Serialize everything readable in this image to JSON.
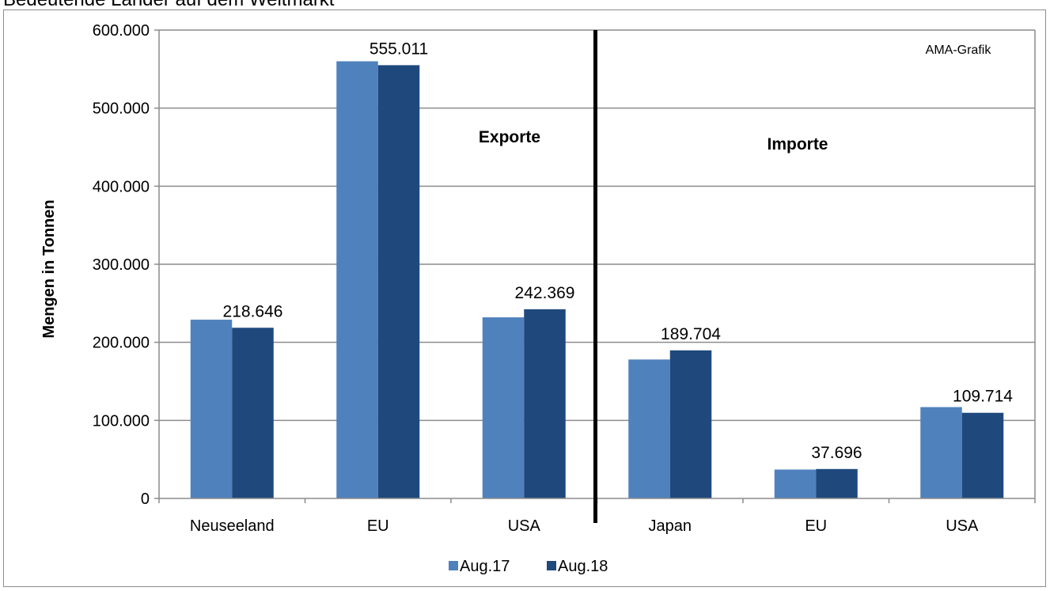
{
  "title": "Bedeutende Länder auf dem Weltmarkt",
  "chart_data": {
    "type": "bar",
    "title": "Bedeutende Länder auf dem Weltmarkt",
    "xlabel": "",
    "ylabel": "Mengen in Tonnen",
    "ylim": [
      0,
      600000
    ],
    "yticks": [
      "0",
      "100.000",
      "200.000",
      "300.000",
      "400.000",
      "500.000",
      "600.000"
    ],
    "categories": [
      "Neuseeland",
      "EU",
      "USA",
      "Japan",
      "EU",
      "USA"
    ],
    "series": [
      {
        "name": "Aug.17",
        "color": "#4f81bd",
        "values": [
          229000,
          560000,
          232000,
          178000,
          37000,
          117000
        ]
      },
      {
        "name": "Aug.18",
        "color": "#1f497d",
        "values": [
          218646,
          555011,
          242369,
          189704,
          37696,
          109714
        ]
      }
    ],
    "data_labels": [
      "218.646",
      "555.011",
      "242.369",
      "189.704",
      "37.696",
      "109.714"
    ],
    "sections": [
      "Exporte",
      "Importe"
    ],
    "annotation": "AMA-Grafik",
    "grid": true,
    "legend": "bottom"
  }
}
